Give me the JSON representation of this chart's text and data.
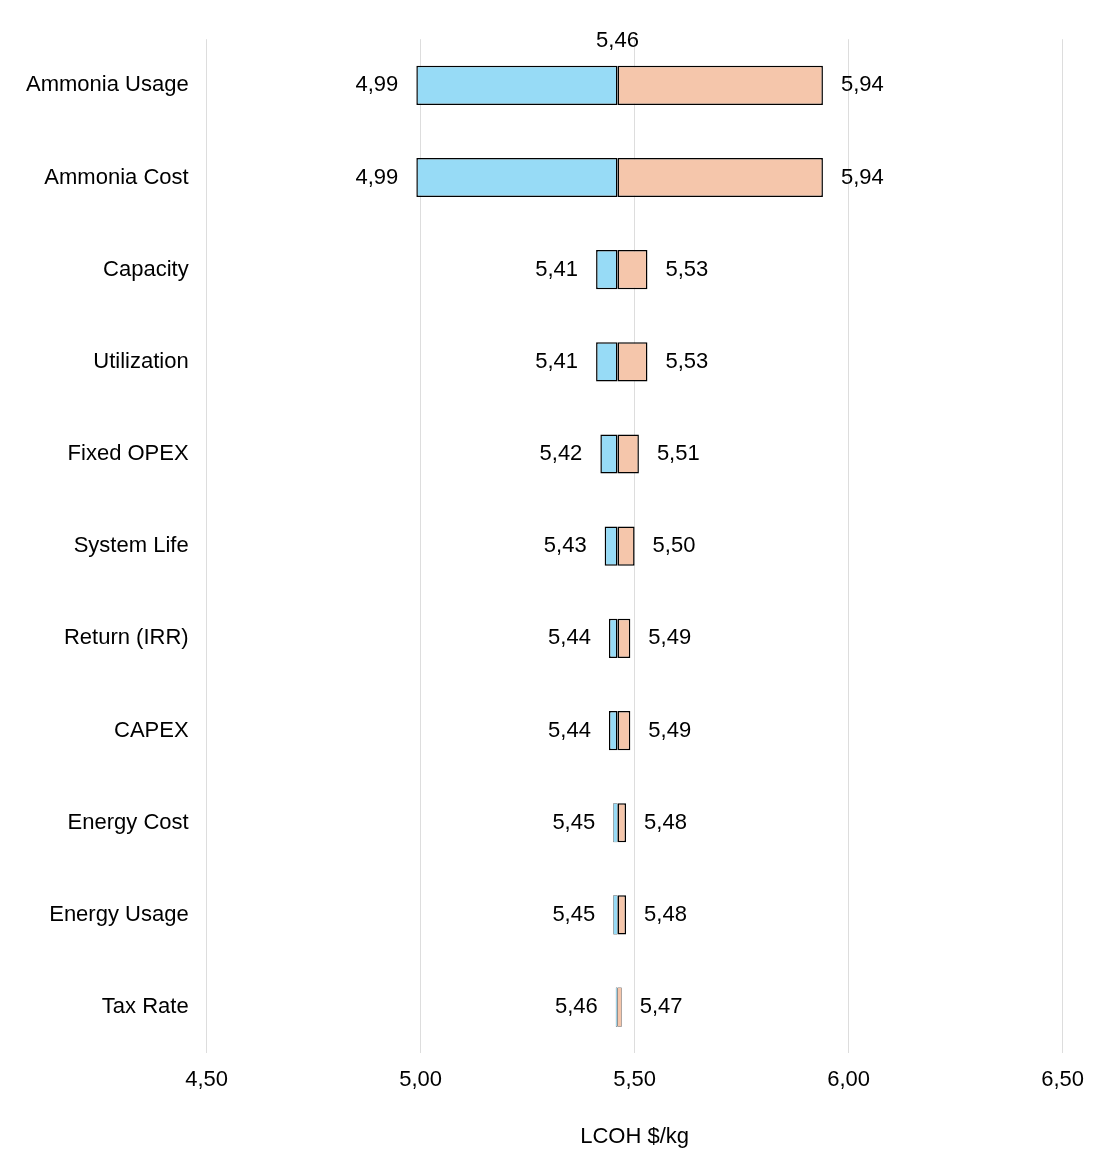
{
  "chart_data": {
    "type": "bar",
    "orientation": "horizontal",
    "xlabel": "LCOH $/kg",
    "categories": [
      "Ammonia Usage",
      "Ammonia Cost",
      "Capacity",
      "Utilization",
      "Fixed OPEX",
      "System Life",
      "Return (IRR)",
      "CAPEX",
      "Energy Cost",
      "Energy Usage",
      "Tax Rate"
    ],
    "series": [
      {
        "color": "#97dbf6",
        "base": [
          5.46,
          5.46,
          5.46,
          5.46,
          5.46,
          5.46,
          5.46,
          5.46,
          5.46,
          5.46,
          5.46
        ],
        "values": [
          -0.47,
          -0.47,
          -0.05,
          -0.05,
          -0.04,
          -0.03,
          -0.02,
          -0.02,
          -0.01,
          -0.01,
          -0.004
        ],
        "value_labels": [
          "4,99",
          "4,99",
          "5,41",
          "5,41",
          "5,42",
          "5,43",
          "5,44",
          "5,44",
          "5,45",
          "5,45",
          "5,46"
        ]
      },
      {
        "color": "#f5c6ab",
        "base": [
          5.46,
          5.46,
          5.46,
          5.46,
          5.46,
          5.46,
          5.46,
          5.46,
          5.46,
          5.46,
          5.46
        ],
        "values": [
          0.48,
          0.48,
          0.07,
          0.07,
          0.05,
          0.04,
          0.03,
          0.03,
          0.02,
          0.02,
          0.01
        ],
        "value_labels": [
          "5,94",
          "5,94",
          "5,53",
          "5,53",
          "5,51",
          "5,50",
          "5,49",
          "5,49",
          "5,48",
          "5,48",
          "5,47"
        ]
      }
    ],
    "xlim": [
      4.5,
      6.5
    ],
    "xticks": [
      {
        "value": 4.5,
        "label": "4,50"
      },
      {
        "value": 5,
        "label": "5,00"
      },
      {
        "value": 5.5,
        "label": "5,50"
      },
      {
        "value": 6,
        "label": "6,00"
      },
      {
        "value": 6.5,
        "label": "6,50"
      }
    ],
    "annotations": [
      {
        "text": "5,46",
        "x": 5.46,
        "y": "Ammonia Usage"
      }
    ],
    "grid": "x",
    "legend": false
  }
}
